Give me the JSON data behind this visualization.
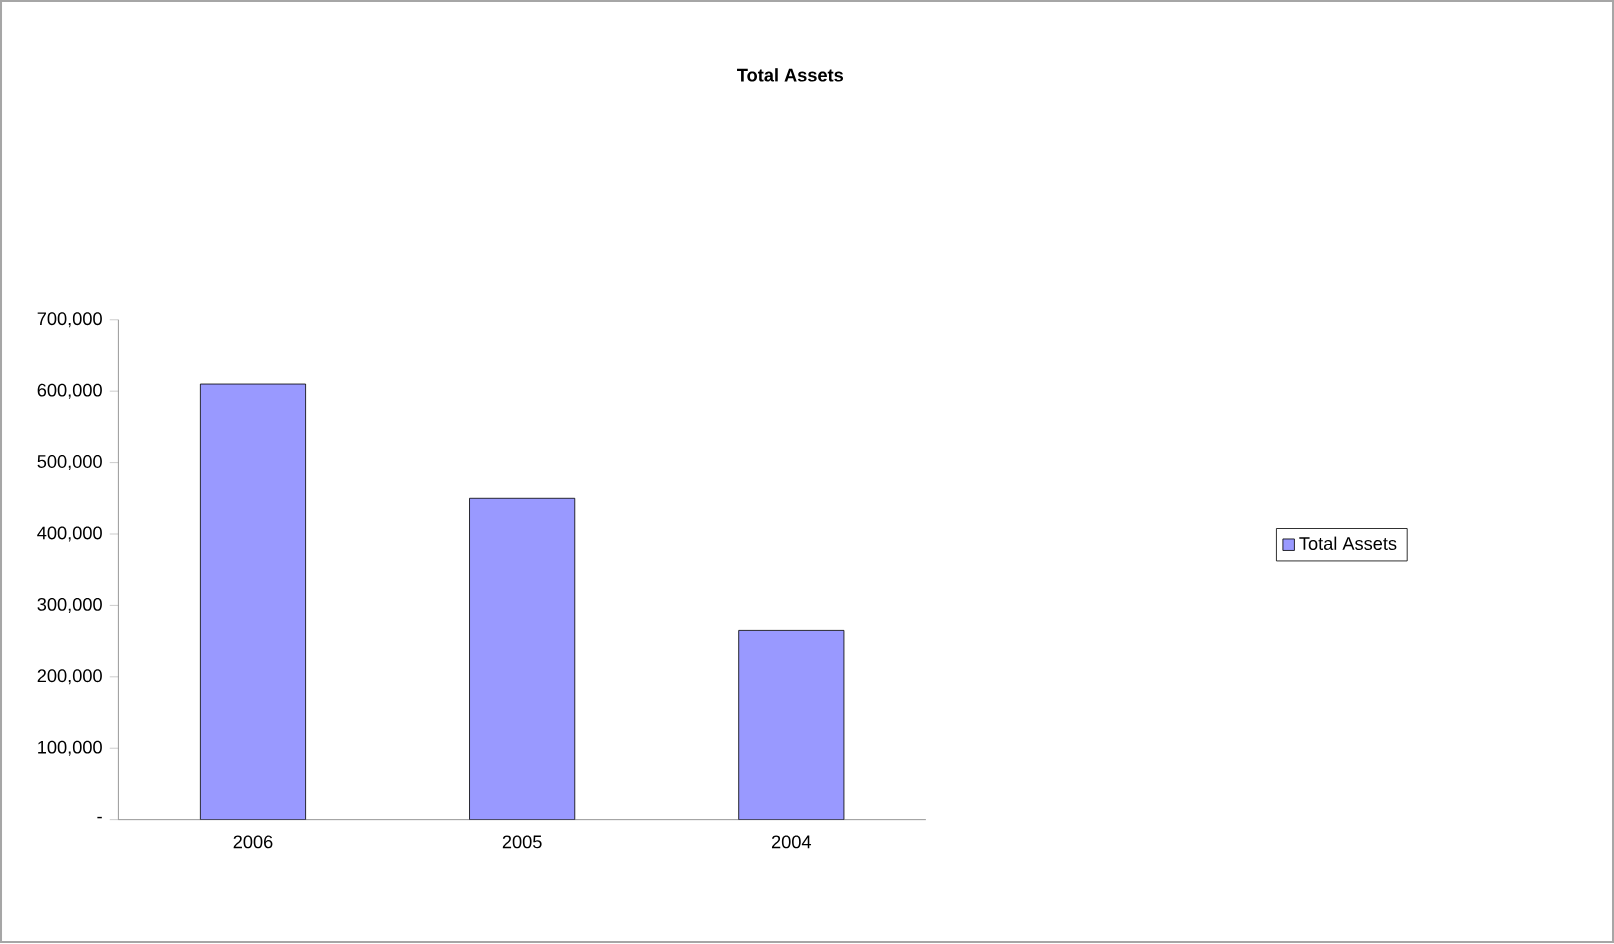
{
  "chart_data": {
    "type": "bar",
    "title": "Total Assets",
    "categories": [
      "2006",
      "2005",
      "2004"
    ],
    "series": [
      {
        "name": "Total Assets",
        "color": "#9999ff",
        "values": [
          610000,
          450000,
          265000
        ]
      }
    ],
    "ylim": [
      0,
      700000
    ],
    "yticks": [
      {
        "value": 0,
        "label": "-"
      },
      {
        "value": 100000,
        "label": "100,000"
      },
      {
        "value": 200000,
        "label": "200,000"
      },
      {
        "value": 300000,
        "label": "300,000"
      },
      {
        "value": 400000,
        "label": "400,000"
      },
      {
        "value": 500000,
        "label": "500,000"
      },
      {
        "value": 600000,
        "label": "600,000"
      },
      {
        "value": 700000,
        "label": "700,000"
      }
    ],
    "grid": false,
    "legend": "right"
  }
}
